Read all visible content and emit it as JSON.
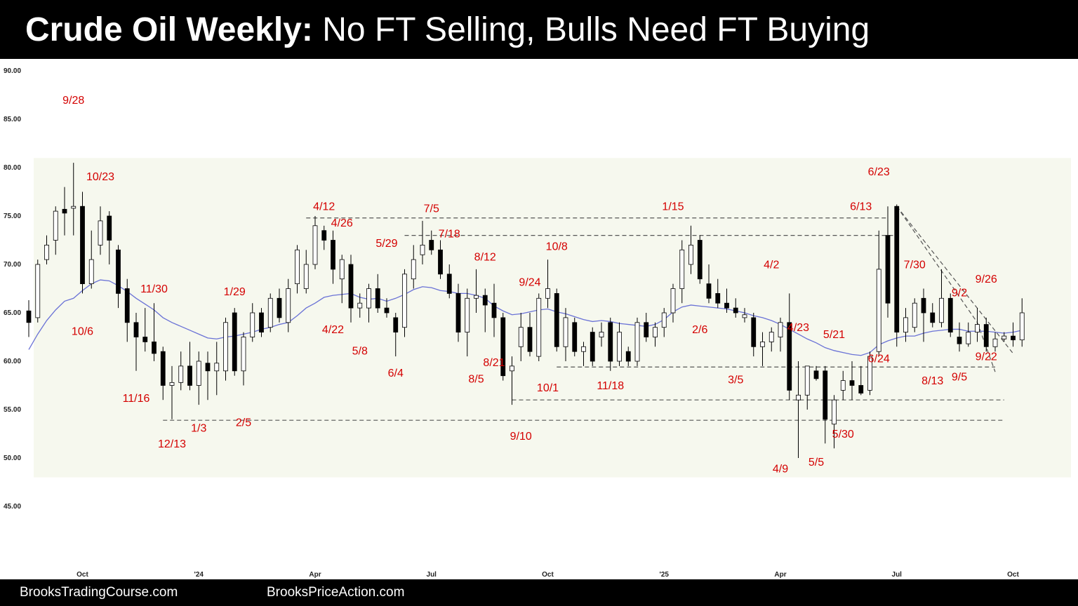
{
  "header": {
    "title_bold": "Crude Oil Weekly:",
    "title_rest": "No FT Selling, Bulls Need FT Buying"
  },
  "footer": {
    "left": "BrooksTradingCourse.com",
    "right": "BrooksPriceAction.com"
  },
  "colors": {
    "background": "#ffffff",
    "range_shade": "#f6f8ee",
    "bear_body": "#000000",
    "bull_body": "#ffffff",
    "ema": "#6a72d6",
    "annotation": "#d40000",
    "dashed_line": "#555555"
  },
  "chart_data": {
    "type": "candlestick",
    "timeframe": "Weekly",
    "ylim": [
      44,
      91
    ],
    "y_ticks": [
      "90.00",
      "85.00",
      "80.00",
      "75.00",
      "70.00",
      "65.00",
      "60.00",
      "55.00",
      "50.00",
      "45.00"
    ],
    "x_ticks": [
      {
        "label": "Oct",
        "week": 0
      },
      {
        "label": "'24",
        "week": 13
      },
      {
        "label": "Apr",
        "week": 26
      },
      {
        "label": "Jul",
        "week": 39
      },
      {
        "label": "Oct",
        "week": 52
      },
      {
        "label": "'25",
        "week": 65
      },
      {
        "label": "Apr",
        "week": 78
      },
      {
        "label": "Jul",
        "week": 91
      },
      {
        "label": "Oct",
        "week": 104
      }
    ],
    "candles": [
      {
        "o": 65.2,
        "h": 66.3,
        "l": 62.5,
        "c": 64.0
      },
      {
        "o": 64.5,
        "h": 70.5,
        "l": 64.0,
        "c": 70.0
      },
      {
        "o": 70.5,
        "h": 73.0,
        "l": 70.0,
        "c": 72.0
      },
      {
        "o": 72.5,
        "h": 76.0,
        "l": 71.0,
        "c": 75.5
      },
      {
        "o": 75.7,
        "h": 78.0,
        "l": 73.0,
        "c": 75.3
      },
      {
        "o": 75.8,
        "h": 80.5,
        "l": 73.0,
        "c": 76.0
      },
      {
        "o": 76.0,
        "h": 77.5,
        "l": 67.0,
        "c": 68.0
      },
      {
        "o": 68.0,
        "h": 73.5,
        "l": 67.5,
        "c": 70.5
      },
      {
        "o": 72.0,
        "h": 76.0,
        "l": 71.0,
        "c": 74.5
      },
      {
        "o": 75.0,
        "h": 75.5,
        "l": 70.0,
        "c": 72.5
      },
      {
        "o": 71.5,
        "h": 72.0,
        "l": 65.5,
        "c": 67.0
      },
      {
        "o": 67.5,
        "h": 68.5,
        "l": 62.0,
        "c": 64.0
      },
      {
        "o": 64.0,
        "h": 65.0,
        "l": 59.0,
        "c": 62.5
      },
      {
        "o": 62.5,
        "h": 65.5,
        "l": 61.0,
        "c": 62.0
      },
      {
        "o": 62.0,
        "h": 66.0,
        "l": 60.0,
        "c": 60.8
      },
      {
        "o": 61.0,
        "h": 61.5,
        "l": 56.0,
        "c": 57.5
      },
      {
        "o": 57.5,
        "h": 59.5,
        "l": 54.0,
        "c": 57.8
      },
      {
        "o": 57.8,
        "h": 61.0,
        "l": 57.0,
        "c": 59.5
      },
      {
        "o": 59.5,
        "h": 62.0,
        "l": 57.0,
        "c": 57.5
      },
      {
        "o": 57.5,
        "h": 61.0,
        "l": 55.5,
        "c": 60.0
      },
      {
        "o": 59.8,
        "h": 61.0,
        "l": 56.0,
        "c": 59.0
      },
      {
        "o": 59.0,
        "h": 62.0,
        "l": 56.5,
        "c": 59.8
      },
      {
        "o": 59.0,
        "h": 64.5,
        "l": 58.0,
        "c": 64.0
      },
      {
        "o": 65.0,
        "h": 65.5,
        "l": 58.5,
        "c": 59.0
      },
      {
        "o": 59.0,
        "h": 63.0,
        "l": 57.5,
        "c": 62.5
      },
      {
        "o": 62.5,
        "h": 66.0,
        "l": 62.0,
        "c": 65.0
      },
      {
        "o": 65.0,
        "h": 65.5,
        "l": 62.5,
        "c": 63.0
      },
      {
        "o": 63.5,
        "h": 67.0,
        "l": 63.0,
        "c": 66.5
      },
      {
        "o": 66.5,
        "h": 67.5,
        "l": 64.0,
        "c": 64.5
      },
      {
        "o": 64.0,
        "h": 68.5,
        "l": 63.0,
        "c": 67.5
      },
      {
        "o": 68.0,
        "h": 72.0,
        "l": 67.0,
        "c": 71.5
      },
      {
        "o": 67.5,
        "h": 71.5,
        "l": 67.0,
        "c": 70.0
      },
      {
        "o": 70.0,
        "h": 75.0,
        "l": 69.5,
        "c": 74.0
      },
      {
        "o": 73.5,
        "h": 74.0,
        "l": 71.5,
        "c": 72.5
      },
      {
        "o": 72.5,
        "h": 73.5,
        "l": 68.0,
        "c": 69.5
      },
      {
        "o": 68.5,
        "h": 71.0,
        "l": 66.0,
        "c": 70.5
      },
      {
        "o": 70.0,
        "h": 71.0,
        "l": 64.0,
        "c": 65.5
      },
      {
        "o": 65.5,
        "h": 67.0,
        "l": 64.5,
        "c": 66.0
      },
      {
        "o": 65.5,
        "h": 68.0,
        "l": 64.0,
        "c": 67.5
      },
      {
        "o": 67.5,
        "h": 69.0,
        "l": 65.0,
        "c": 65.5
      },
      {
        "o": 65.5,
        "h": 66.5,
        "l": 64.5,
        "c": 65.0
      },
      {
        "o": 64.5,
        "h": 65.0,
        "l": 60.5,
        "c": 63.0
      },
      {
        "o": 63.5,
        "h": 69.5,
        "l": 62.5,
        "c": 69.0
      },
      {
        "o": 68.5,
        "h": 72.0,
        "l": 67.5,
        "c": 70.5
      },
      {
        "o": 71.0,
        "h": 74.5,
        "l": 70.0,
        "c": 72.0
      },
      {
        "o": 72.5,
        "h": 73.5,
        "l": 71.0,
        "c": 71.5
      },
      {
        "o": 71.5,
        "h": 72.5,
        "l": 68.5,
        "c": 69.0
      },
      {
        "o": 69.0,
        "h": 70.0,
        "l": 66.5,
        "c": 67.0
      },
      {
        "o": 67.0,
        "h": 68.0,
        "l": 62.0,
        "c": 63.0
      },
      {
        "o": 63.0,
        "h": 67.5,
        "l": 60.5,
        "c": 66.5
      },
      {
        "o": 66.5,
        "h": 69.5,
        "l": 65.0,
        "c": 66.8
      },
      {
        "o": 66.8,
        "h": 67.5,
        "l": 63.0,
        "c": 65.8
      },
      {
        "o": 66.0,
        "h": 68.0,
        "l": 62.5,
        "c": 64.5
      },
      {
        "o": 64.5,
        "h": 65.0,
        "l": 58.0,
        "c": 58.5
      },
      {
        "o": 59.0,
        "h": 60.5,
        "l": 55.5,
        "c": 59.5
      },
      {
        "o": 61.5,
        "h": 65.0,
        "l": 60.0,
        "c": 63.5
      },
      {
        "o": 63.5,
        "h": 65.0,
        "l": 60.5,
        "c": 61.0
      },
      {
        "o": 60.5,
        "h": 67.0,
        "l": 60.0,
        "c": 66.5
      },
      {
        "o": 66.5,
        "h": 70.5,
        "l": 65.5,
        "c": 67.5
      },
      {
        "o": 67.0,
        "h": 67.5,
        "l": 61.0,
        "c": 61.5
      },
      {
        "o": 61.5,
        "h": 65.5,
        "l": 60.0,
        "c": 64.5
      },
      {
        "o": 64.0,
        "h": 64.5,
        "l": 60.5,
        "c": 61.0
      },
      {
        "o": 61.0,
        "h": 62.0,
        "l": 59.5,
        "c": 61.5
      },
      {
        "o": 63.0,
        "h": 63.5,
        "l": 59.5,
        "c": 60.0
      },
      {
        "o": 62.5,
        "h": 64.0,
        "l": 61.5,
        "c": 63.0
      },
      {
        "o": 64.0,
        "h": 64.5,
        "l": 59.0,
        "c": 60.0
      },
      {
        "o": 60.0,
        "h": 64.0,
        "l": 59.5,
        "c": 63.0
      },
      {
        "o": 61.0,
        "h": 61.5,
        "l": 59.5,
        "c": 60.0
      },
      {
        "o": 60.0,
        "h": 64.5,
        "l": 59.5,
        "c": 64.0
      },
      {
        "o": 64.0,
        "h": 65.0,
        "l": 62.0,
        "c": 62.5
      },
      {
        "o": 62.5,
        "h": 64.0,
        "l": 61.5,
        "c": 63.5
      },
      {
        "o": 63.5,
        "h": 65.5,
        "l": 62.5,
        "c": 65.0
      },
      {
        "o": 65.0,
        "h": 68.0,
        "l": 64.0,
        "c": 67.5
      },
      {
        "o": 67.5,
        "h": 72.5,
        "l": 66.0,
        "c": 71.5
      },
      {
        "o": 70.0,
        "h": 74.0,
        "l": 69.0,
        "c": 72.0
      },
      {
        "o": 72.5,
        "h": 73.0,
        "l": 68.0,
        "c": 68.5
      },
      {
        "o": 68.0,
        "h": 70.0,
        "l": 66.0,
        "c": 66.5
      },
      {
        "o": 67.0,
        "h": 68.5,
        "l": 65.5,
        "c": 66.0
      },
      {
        "o": 66.0,
        "h": 67.5,
        "l": 65.0,
        "c": 65.5
      },
      {
        "o": 65.5,
        "h": 66.5,
        "l": 64.5,
        "c": 65.0
      },
      {
        "o": 64.5,
        "h": 65.5,
        "l": 64.0,
        "c": 64.8
      },
      {
        "o": 64.5,
        "h": 65.0,
        "l": 60.5,
        "c": 61.5
      },
      {
        "o": 61.5,
        "h": 63.0,
        "l": 59.5,
        "c": 62.0
      },
      {
        "o": 62.0,
        "h": 63.5,
        "l": 61.0,
        "c": 63.0
      },
      {
        "o": 62.5,
        "h": 64.5,
        "l": 61.0,
        "c": 64.0
      },
      {
        "o": 64.0,
        "h": 67.0,
        "l": 56.0,
        "c": 57.0
      },
      {
        "o": 56.0,
        "h": 60.0,
        "l": 50.0,
        "c": 56.5
      },
      {
        "o": 56.5,
        "h": 59.5,
        "l": 55.0,
        "c": 59.5
      },
      {
        "o": 59.0,
        "h": 59.5,
        "l": 58.0,
        "c": 58.2
      },
      {
        "o": 59.0,
        "h": 59.5,
        "l": 51.5,
        "c": 54.0
      },
      {
        "o": 53.5,
        "h": 56.5,
        "l": 51.0,
        "c": 56.0
      },
      {
        "o": 57.0,
        "h": 59.0,
        "l": 56.0,
        "c": 58.0
      },
      {
        "o": 58.0,
        "h": 60.0,
        "l": 56.0,
        "c": 57.5
      },
      {
        "o": 57.5,
        "h": 59.5,
        "l": 56.5,
        "c": 56.7
      },
      {
        "o": 57.0,
        "h": 61.0,
        "l": 56.5,
        "c": 60.5
      },
      {
        "o": 61.0,
        "h": 73.5,
        "l": 60.5,
        "c": 69.5
      },
      {
        "o": 73.0,
        "h": 76.0,
        "l": 64.5,
        "c": 66.0
      },
      {
        "o": 76.0,
        "h": 76.2,
        "l": 61.5,
        "c": 63.0
      },
      {
        "o": 63.0,
        "h": 65.5,
        "l": 62.0,
        "c": 64.5
      },
      {
        "o": 63.5,
        "h": 66.5,
        "l": 63.0,
        "c": 66.0
      },
      {
        "o": 66.5,
        "h": 67.5,
        "l": 62.0,
        "c": 65.0
      },
      {
        "o": 65.0,
        "h": 66.0,
        "l": 63.5,
        "c": 64.0
      },
      {
        "o": 64.0,
        "h": 69.5,
        "l": 63.5,
        "c": 66.5
      },
      {
        "o": 66.5,
        "h": 67.0,
        "l": 62.5,
        "c": 63.0
      },
      {
        "o": 62.5,
        "h": 64.0,
        "l": 61.0,
        "c": 61.8
      },
      {
        "o": 61.8,
        "h": 64.0,
        "l": 61.5,
        "c": 63.0
      },
      {
        "o": 63.0,
        "h": 65.5,
        "l": 62.0,
        "c": 63.8
      },
      {
        "o": 63.8,
        "h": 64.5,
        "l": 61.0,
        "c": 61.5
      },
      {
        "o": 61.5,
        "h": 63.0,
        "l": 61.0,
        "c": 62.3
      },
      {
        "o": 62.3,
        "h": 63.0,
        "l": 62.0,
        "c": 62.6
      },
      {
        "o": 62.6,
        "h": 64.0,
        "l": 61.5,
        "c": 62.2
      },
      {
        "o": 62.2,
        "h": 66.5,
        "l": 61.5,
        "c": 65.0
      }
    ],
    "ema_20": [
      61.2,
      62.8,
      64.2,
      65.3,
      66.2,
      66.5,
      67.3,
      68.0,
      68.4,
      68.3,
      67.8,
      67.2,
      66.5,
      65.9,
      65.3,
      64.5,
      64.0,
      63.6,
      63.2,
      62.8,
      62.4,
      62.3,
      62.5,
      62.6,
      62.8,
      63.0,
      63.3,
      63.5,
      63.8,
      64.0,
      64.7,
      65.5,
      66.0,
      66.6,
      66.8,
      66.9,
      67.0,
      66.6,
      66.4,
      66.5,
      66.2,
      66.5,
      66.9,
      67.4,
      67.7,
      67.6,
      67.3,
      67.2,
      67.0,
      67.0,
      66.8,
      66.5,
      65.7,
      65.2,
      64.8,
      64.9,
      65.1,
      65.3,
      65.4,
      65.1,
      64.9,
      64.6,
      64.3,
      64.1,
      64.2,
      64.1,
      63.9,
      63.8,
      63.7,
      63.6,
      63.8,
      64.3,
      65.1,
      65.6,
      65.8,
      65.7,
      65.6,
      65.5,
      65.4,
      65.2,
      65.0,
      64.7,
      64.5,
      64.2,
      63.8,
      63.3,
      62.8,
      62.3,
      61.9,
      61.4,
      61.1,
      60.9,
      60.7,
      60.6,
      60.9,
      61.7,
      62.1,
      62.4,
      62.6,
      62.6,
      62.9,
      63.1,
      63.2,
      63.3,
      63.3,
      63.1,
      63.1,
      63.1,
      63.0,
      62.9,
      63.0,
      63.2
    ],
    "range_box": {
      "top": 81.0,
      "bottom": 48.0
    },
    "support_resistance_lines": [
      {
        "from_week": 31,
        "to_week": 96,
        "price": 74.8
      },
      {
        "from_week": 42,
        "to_week": 97,
        "price": 73.0
      },
      {
        "from_week": 59,
        "to_week": 108,
        "price": 59.4
      },
      {
        "from_week": 54,
        "to_week": 109,
        "price": 56.0
      },
      {
        "from_week": 15,
        "to_week": 109,
        "price": 53.9
      }
    ],
    "trend_lines": [
      {
        "from_week": 97,
        "from_price": 76.0,
        "to_week": 110,
        "to_price": 60.8
      },
      {
        "from_week": 97,
        "from_price": 76.0,
        "to_week": 106,
        "to_price": 64.0
      },
      {
        "from_week": 106,
        "from_price": 64.0,
        "to_week": 108,
        "to_price": 58.9
      }
    ],
    "annotations": [
      {
        "text": "9/28",
        "week": 5,
        "price": 86.6
      },
      {
        "text": "10/23",
        "week": 8,
        "price": 78.7
      },
      {
        "text": "10/6",
        "week": 6,
        "price": 62.7
      },
      {
        "text": "11/30",
        "week": 14,
        "price": 67.1
      },
      {
        "text": "11/16",
        "week": 12,
        "price": 55.8
      },
      {
        "text": "12/13",
        "week": 16,
        "price": 51.1
      },
      {
        "text": "1/3",
        "week": 19,
        "price": 52.7
      },
      {
        "text": "2/5",
        "week": 24,
        "price": 53.3
      },
      {
        "text": "1/29",
        "week": 23,
        "price": 66.8
      },
      {
        "text": "4/12",
        "week": 33,
        "price": 75.6
      },
      {
        "text": "4/26",
        "week": 35,
        "price": 73.9
      },
      {
        "text": "4/22",
        "week": 34,
        "price": 62.9
      },
      {
        "text": "5/29",
        "week": 40,
        "price": 71.8
      },
      {
        "text": "5/8",
        "week": 37,
        "price": 60.7
      },
      {
        "text": "7/5",
        "week": 45,
        "price": 75.4
      },
      {
        "text": "7/18",
        "week": 47,
        "price": 72.8
      },
      {
        "text": "6/4",
        "week": 41,
        "price": 58.4
      },
      {
        "text": "8/12",
        "week": 51,
        "price": 70.4
      },
      {
        "text": "9/24",
        "week": 56,
        "price": 67.8
      },
      {
        "text": "10/8",
        "week": 59,
        "price": 71.5
      },
      {
        "text": "8/21",
        "week": 52,
        "price": 59.5
      },
      {
        "text": "8/5",
        "week": 50,
        "price": 57.8
      },
      {
        "text": "10/1",
        "week": 58,
        "price": 56.9
      },
      {
        "text": "11/18",
        "week": 65,
        "price": 57.1
      },
      {
        "text": "9/10",
        "week": 55,
        "price": 51.9
      },
      {
        "text": "1/15",
        "week": 72,
        "price": 75.6
      },
      {
        "text": "2/6",
        "week": 75,
        "price": 62.9
      },
      {
        "text": "3/5",
        "week": 79,
        "price": 57.7
      },
      {
        "text": "4/2",
        "week": 83,
        "price": 69.6
      },
      {
        "text": "4/23",
        "week": 86,
        "price": 63.1
      },
      {
        "text": "4/9",
        "week": 84,
        "price": 48.5
      },
      {
        "text": "5/5",
        "week": 88,
        "price": 49.2
      },
      {
        "text": "5/21",
        "week": 90,
        "price": 62.4
      },
      {
        "text": "5/30",
        "week": 91,
        "price": 52.1
      },
      {
        "text": "6/13",
        "week": 93,
        "price": 75.6
      },
      {
        "text": "6/23",
        "week": 95,
        "price": 79.2
      },
      {
        "text": "6/24",
        "week": 95,
        "price": 59.9
      },
      {
        "text": "7/30",
        "week": 99,
        "price": 69.6
      },
      {
        "text": "8/13",
        "week": 101,
        "price": 57.6
      },
      {
        "text": "9/2",
        "week": 104,
        "price": 66.7
      },
      {
        "text": "9/5",
        "week": 104,
        "price": 58.0
      },
      {
        "text": "9/26",
        "week": 107,
        "price": 68.1
      },
      {
        "text": "9/22",
        "week": 107,
        "price": 60.1
      }
    ]
  }
}
